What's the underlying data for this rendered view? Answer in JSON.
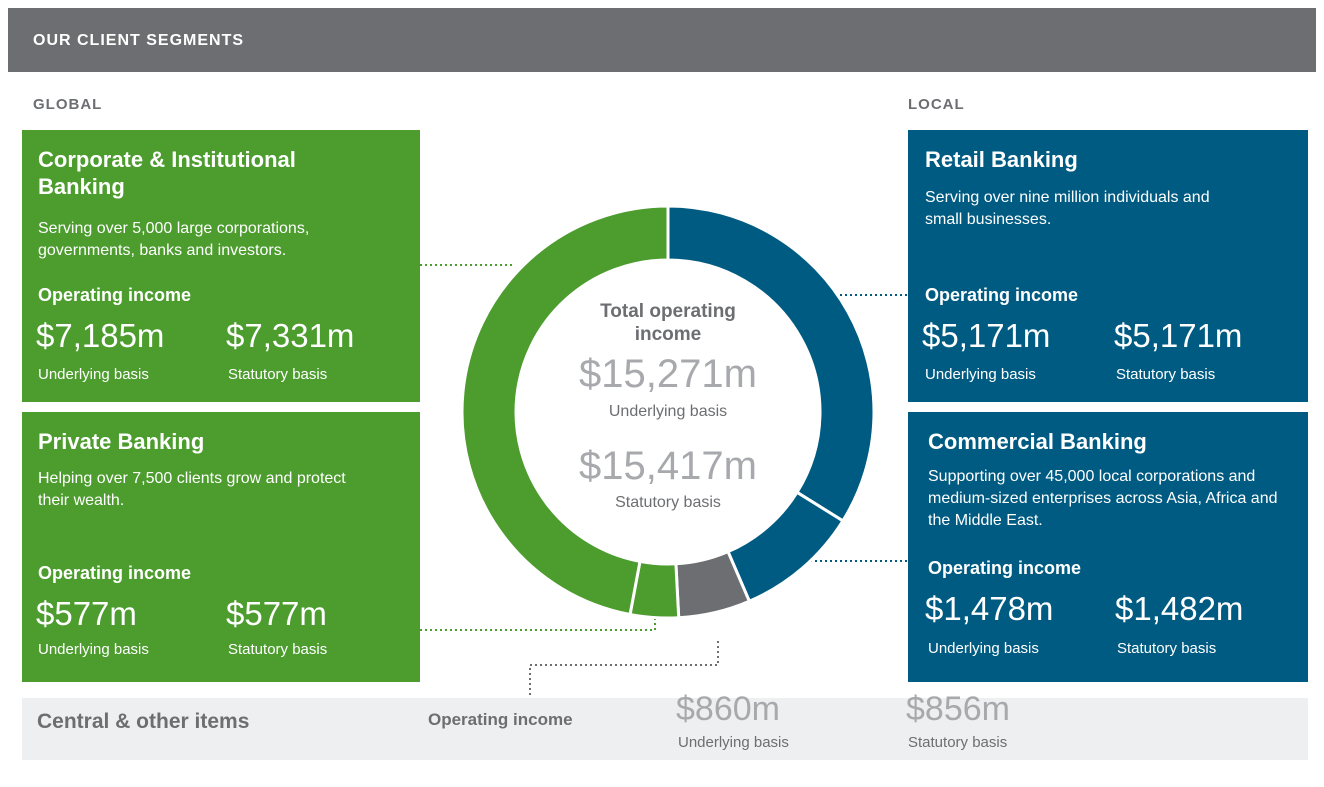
{
  "header": "OUR CLIENT SEGMENTS",
  "global_label": "GLOBAL",
  "local_label": "LOCAL",
  "income_heading": "Operating income",
  "underlying_caption": "Underlying basis",
  "statutory_caption": "Statutory basis",
  "chart_data": {
    "type": "donut",
    "categories": [
      "Retail Banking",
      "Commercial Banking",
      "Central & other items",
      "Private Banking",
      "Corporate & Institutional Banking"
    ],
    "values": [
      5171,
      1478,
      860,
      577,
      7185
    ],
    "value_labels": [
      "$5,171m",
      "$1,478m",
      "$860m",
      "$577m",
      "$7,185m"
    ],
    "colors": [
      "#005b82",
      "#005b82",
      "#6d6e71",
      "#4c9c2e",
      "#4c9c2e"
    ],
    "center_title": "Total operating income",
    "total_label": "$15,271m",
    "statutory_total_label": "$15,417m"
  },
  "segments": [
    {
      "description": "Serving over nine million individuals and small businesses.",
      "statutory": "$5,171m"
    },
    {
      "description": "Supporting over 45,000 local corporations and medium-sized enterprises across Asia, Africa and the Middle East.",
      "statutory": "$1,482m"
    },
    {
      "statutory": "$856m"
    },
    {
      "description": "Helping over 7,500 clients grow and protect their wealth.",
      "statutory": "$577m"
    },
    {
      "description": "Serving over 5,000 large corporations, governments, banks and investors.",
      "statutory": "$7,331m"
    }
  ]
}
